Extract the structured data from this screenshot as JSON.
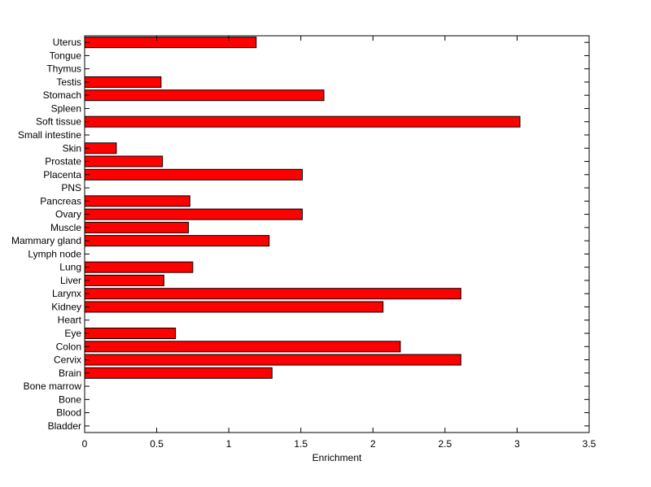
{
  "chart_data": {
    "type": "bar",
    "orientation": "horizontal",
    "categories": [
      "Bladder",
      "Blood",
      "Bone",
      "Bone marrow",
      "Brain",
      "Cervix",
      "Colon",
      "Eye",
      "Heart",
      "Kidney",
      "Larynx",
      "Liver",
      "Lung",
      "Lymph node",
      "Mammary gland",
      "Muscle",
      "Ovary",
      "Pancreas",
      "PNS",
      "Placenta",
      "Prostate",
      "Skin",
      "Small intestine",
      "Soft tissue",
      "Spleen",
      "Stomach",
      "Testis",
      "Thymus",
      "Tongue",
      "Uterus"
    ],
    "values": [
      0,
      0,
      0,
      0,
      1.3,
      2.61,
      2.19,
      0.63,
      0,
      2.07,
      2.61,
      0.55,
      0.75,
      0,
      1.28,
      0.72,
      1.51,
      0.73,
      0,
      1.51,
      0.54,
      0.22,
      0,
      3.02,
      0,
      1.66,
      0.53,
      0,
      0,
      1.19
    ],
    "title": "",
    "xlabel": "Enrichment",
    "ylabel": "",
    "xlim": [
      0,
      3.5
    ],
    "xticks": [
      "0",
      "0.5",
      "1",
      "1.5",
      "2",
      "2.5",
      "3",
      "3.5"
    ],
    "bar_color": "#ff0000",
    "grid": false,
    "legend": "none"
  }
}
